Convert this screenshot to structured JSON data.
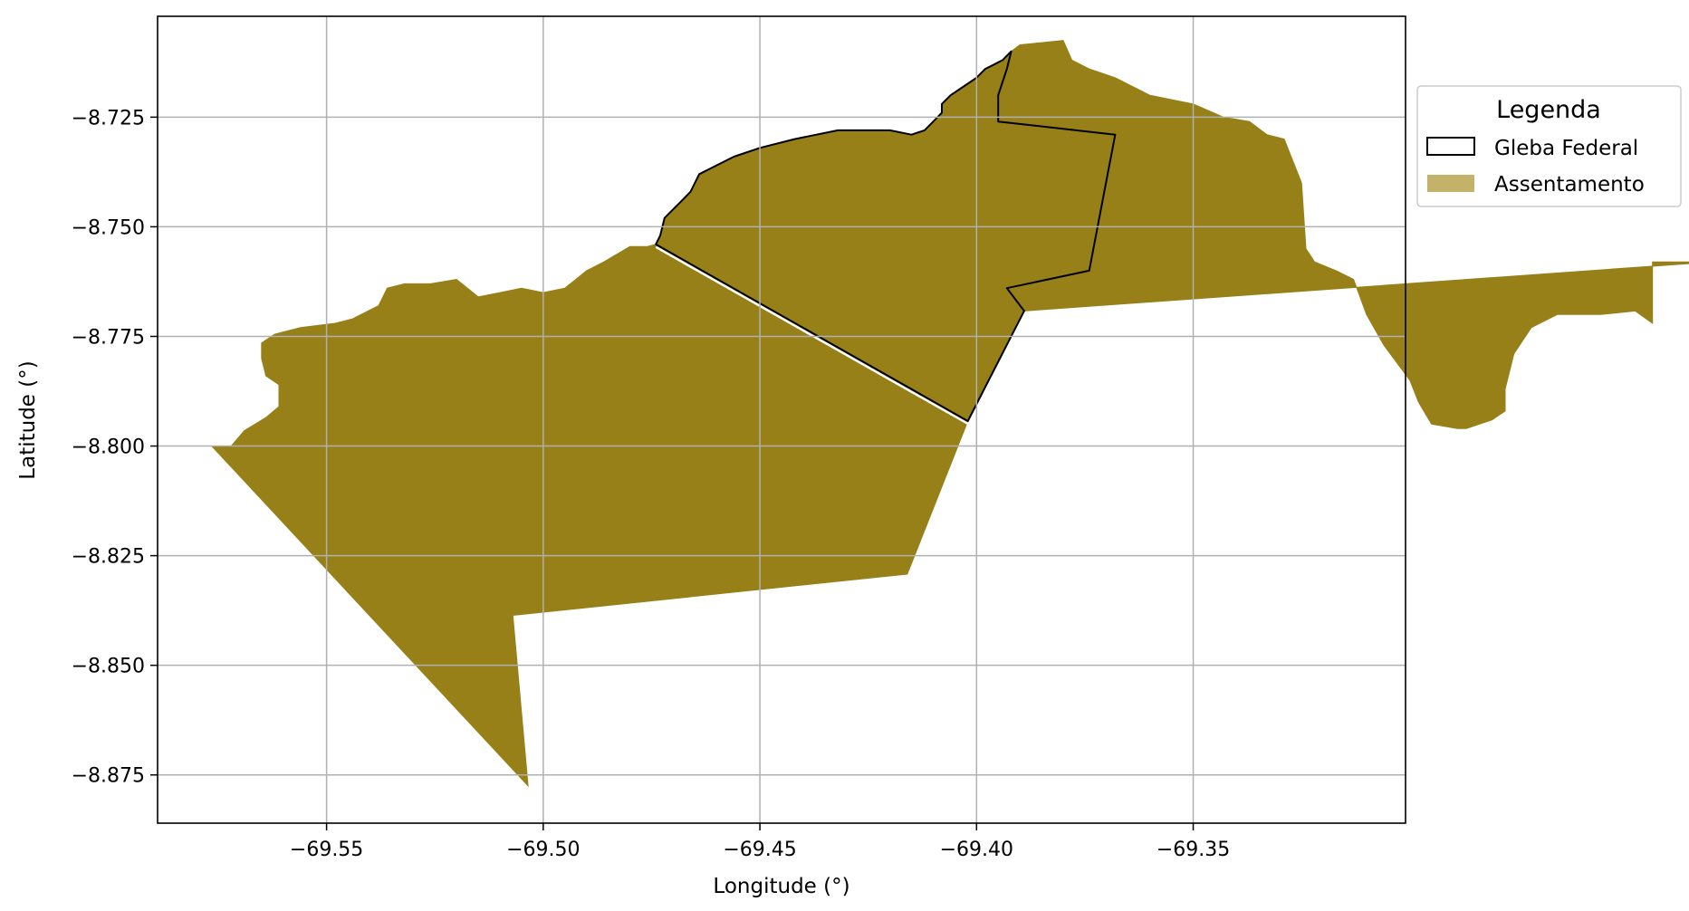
{
  "chart_data": {
    "type": "map",
    "xlabel": "Longitude (°)",
    "ylabel": "Latitude (°)",
    "xlim": [
      -69.589,
      -69.301
    ],
    "ylim": [
      -8.886,
      -8.702
    ],
    "grid": true,
    "x_ticks": [
      {
        "value": -69.55,
        "label": "−69.55"
      },
      {
        "value": -69.5,
        "label": "−69.50"
      },
      {
        "value": -69.45,
        "label": "−69.45"
      },
      {
        "value": -69.4,
        "label": "−69.40"
      },
      {
        "value": -69.35,
        "label": "−69.35"
      }
    ],
    "y_ticks": [
      {
        "value": -8.725,
        "label": "−8.725"
      },
      {
        "value": -8.75,
        "label": "−8.750"
      },
      {
        "value": -8.775,
        "label": "−8.775"
      },
      {
        "value": -8.8,
        "label": "−8.800"
      },
      {
        "value": -8.825,
        "label": "−8.825"
      },
      {
        "value": -8.85,
        "label": "−8.850"
      },
      {
        "value": -8.875,
        "label": "−8.875"
      }
    ],
    "legend": {
      "title": "Legenda",
      "placement": "outside-right-top",
      "entries": [
        {
          "label": "Gleba Federal",
          "style": "outline",
          "color": "#000000"
        },
        {
          "label": "Assentamento",
          "style": "fill",
          "color": "#c2b26a"
        }
      ]
    },
    "layers": {
      "assentamento": {
        "color": "#978018",
        "polygons": [
          [
            [
              -69.5765,
              -8.8
            ],
            [
              -69.572,
              -8.8
            ],
            [
              -69.569,
              -8.7965
            ],
            [
              -69.564,
              -8.7935
            ],
            [
              -69.561,
              -8.791
            ],
            [
              -69.561,
              -8.786
            ],
            [
              -69.564,
              -8.784
            ],
            [
              -69.565,
              -8.78
            ],
            [
              -69.565,
              -8.7765
            ],
            [
              -69.562,
              -8.7745
            ],
            [
              -69.556,
              -8.773
            ],
            [
              -69.552,
              -8.7725
            ],
            [
              -69.548,
              -8.772
            ],
            [
              -69.544,
              -8.771
            ],
            [
              -69.538,
              -8.768
            ],
            [
              -69.536,
              -8.764
            ],
            [
              -69.532,
              -8.763
            ],
            [
              -69.526,
              -8.763
            ],
            [
              -69.52,
              -8.762
            ],
            [
              -69.515,
              -8.766
            ],
            [
              -69.51,
              -8.765
            ],
            [
              -69.505,
              -8.764
            ],
            [
              -69.5,
              -8.765
            ],
            [
              -69.495,
              -8.764
            ],
            [
              -69.49,
              -8.76
            ],
            [
              -69.486,
              -8.758
            ],
            [
              -69.48,
              -8.7545
            ],
            [
              -69.476,
              -8.7545
            ],
            [
              -69.474,
              -8.754
            ],
            [
              -69.402,
              -8.7943
            ],
            [
              -69.416,
              -8.8292
            ],
            [
              -69.507,
              -8.8386
            ],
            [
              -69.5035,
              -8.8775
            ],
            [
              -69.5765,
              -8.8
            ]
          ],
          [
            [
              -69.474,
              -8.754
            ],
            [
              -69.473,
              -8.752
            ],
            [
              -69.472,
              -8.748
            ],
            [
              -69.47,
              -8.746
            ],
            [
              -69.468,
              -8.744
            ],
            [
              -69.466,
              -8.742
            ],
            [
              -69.464,
              -8.738
            ],
            [
              -69.46,
              -8.736
            ],
            [
              -69.456,
              -8.734
            ],
            [
              -69.45,
              -8.732
            ],
            [
              -69.442,
              -8.73
            ],
            [
              -69.432,
              -8.728
            ],
            [
              -69.42,
              -8.728
            ],
            [
              -69.415,
              -8.729
            ],
            [
              -69.412,
              -8.728
            ],
            [
              -69.41,
              -8.726
            ],
            [
              -69.408,
              -8.724
            ],
            [
              -69.408,
              -8.722
            ],
            [
              -69.406,
              -8.72
            ],
            [
              -69.403,
              -8.718
            ],
            [
              -69.4,
              -8.716
            ],
            [
              -69.398,
              -8.714
            ],
            [
              -69.396,
              -8.713
            ],
            [
              -69.394,
              -8.712
            ],
            [
              -69.392,
              -8.71
            ],
            [
              -69.39,
              -8.7085
            ],
            [
              -69.385,
              -8.708
            ],
            [
              -69.38,
              -8.7075
            ],
            [
              -69.378,
              -8.712
            ],
            [
              -69.374,
              -8.714
            ],
            [
              -69.368,
              -8.716
            ],
            [
              -69.36,
              -8.72
            ],
            [
              -69.35,
              -8.722
            ],
            [
              -69.343,
              -8.725
            ],
            [
              -69.337,
              -8.726
            ],
            [
              -69.333,
              -8.729
            ],
            [
              -69.329,
              -8.73
            ],
            [
              -69.325,
              -8.74
            ],
            [
              -69.324,
              -8.755
            ],
            [
              -69.322,
              -8.758
            ],
            [
              -69.317,
              -8.76
            ],
            [
              -69.313,
              -8.762
            ],
            [
              -69.31,
              -8.77
            ],
            [
              -69.306,
              -8.777
            ],
            [
              -69.3,
              -8.785
            ],
            [
              -69.298,
              -8.79
            ],
            [
              -69.295,
              -8.795
            ],
            [
              -69.289,
              -8.796
            ],
            [
              -69.287,
              -8.796
            ],
            [
              -69.281,
              -8.794
            ],
            [
              -69.278,
              -8.792
            ],
            [
              -69.278,
              -8.787
            ],
            [
              -69.276,
              -8.779
            ],
            [
              -69.272,
              -8.773
            ],
            [
              -69.266,
              -8.77
            ],
            [
              -69.256,
              -8.77
            ],
            [
              -69.248,
              -8.7692
            ],
            [
              -69.244,
              -8.772
            ],
            [
              -69.244,
              -8.758
            ],
            [
              -69.23,
              -8.758
            ],
            [
              -69.389,
              -8.7692
            ],
            [
              -69.402,
              -8.7943
            ],
            [
              -69.474,
              -8.754
            ]
          ]
        ]
      },
      "gleba_federal": {
        "color": "#000000",
        "polygons": [
          [
            [
              -69.474,
              -8.754
            ],
            [
              -69.473,
              -8.752
            ],
            [
              -69.472,
              -8.748
            ],
            [
              -69.47,
              -8.746
            ],
            [
              -69.468,
              -8.744
            ],
            [
              -69.466,
              -8.742
            ],
            [
              -69.464,
              -8.738
            ],
            [
              -69.46,
              -8.736
            ],
            [
              -69.456,
              -8.734
            ],
            [
              -69.45,
              -8.732
            ],
            [
              -69.442,
              -8.73
            ],
            [
              -69.432,
              -8.728
            ],
            [
              -69.42,
              -8.728
            ],
            [
              -69.415,
              -8.729
            ],
            [
              -69.412,
              -8.728
            ],
            [
              -69.41,
              -8.726
            ],
            [
              -69.408,
              -8.724
            ],
            [
              -69.408,
              -8.722
            ],
            [
              -69.406,
              -8.72
            ],
            [
              -69.403,
              -8.718
            ],
            [
              -69.4,
              -8.716
            ],
            [
              -69.398,
              -8.714
            ],
            [
              -69.396,
              -8.713
            ],
            [
              -69.394,
              -8.712
            ],
            [
              -69.392,
              -8.71
            ],
            [
              -69.393,
              -8.714
            ],
            [
              -69.395,
              -8.72
            ],
            [
              -69.395,
              -8.726
            ],
            [
              -69.368,
              -8.729
            ],
            [
              -69.374,
              -8.76
            ],
            [
              -69.393,
              -8.764
            ],
            [
              -69.389,
              -8.7692
            ],
            [
              -69.402,
              -8.7943
            ],
            [
              -69.474,
              -8.754
            ]
          ]
        ]
      }
    }
  }
}
